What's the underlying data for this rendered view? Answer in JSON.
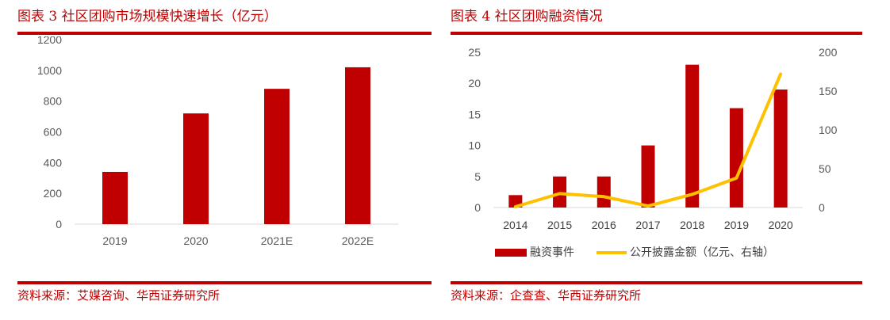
{
  "left": {
    "title": "图表 3    社区团购市场规模快速增长（亿元）",
    "source": "资料来源：艾媒咨询、华西证券研究所",
    "chart_data": {
      "type": "bar",
      "categories": [
        "2019",
        "2020",
        "2021E",
        "2022E"
      ],
      "values": [
        340,
        720,
        880,
        1020
      ],
      "yticks": [
        "0",
        "200",
        "400",
        "600",
        "800",
        "1000",
        "1200"
      ],
      "ylim": [
        0,
        1200
      ],
      "grid": false,
      "color": "#c00000"
    }
  },
  "right": {
    "title": "图表 4    社区团购融资情况",
    "source": "资料来源：企查查、华西证券研究所",
    "chart_data": {
      "type": "bar",
      "categories": [
        "2014",
        "2015",
        "2016",
        "2017",
        "2018",
        "2019",
        "2020"
      ],
      "series": [
        {
          "name": "融资事件",
          "type": "bar",
          "axis": "left",
          "color": "#c00000",
          "values": [
            2,
            5,
            5,
            10,
            23,
            16,
            19
          ]
        },
        {
          "name": "公开披露金额（亿元、右轴）",
          "type": "line",
          "axis": "right",
          "color": "#ffc000",
          "values": [
            1,
            18,
            14,
            2,
            17,
            38,
            172
          ]
        }
      ],
      "yticks_left": [
        "0",
        "5",
        "10",
        "15",
        "20",
        "25"
      ],
      "ylim_left": [
        0,
        25
      ],
      "yticks_right": [
        "0",
        "50",
        "100",
        "150",
        "200"
      ],
      "ylim_right": [
        0,
        200
      ],
      "legend_position": "bottom"
    }
  }
}
